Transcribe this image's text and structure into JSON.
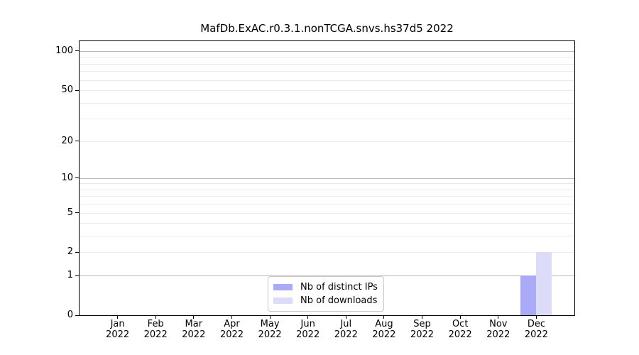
{
  "chart_data": {
    "type": "bar",
    "title": "MafDb.ExAC.r0.3.1.nonTCGA.snvs.hs37d5 2022",
    "categories": [
      {
        "month": "Jan",
        "year": "2022"
      },
      {
        "month": "Feb",
        "year": "2022"
      },
      {
        "month": "Mar",
        "year": "2022"
      },
      {
        "month": "Apr",
        "year": "2022"
      },
      {
        "month": "May",
        "year": "2022"
      },
      {
        "month": "Jun",
        "year": "2022"
      },
      {
        "month": "Jul",
        "year": "2022"
      },
      {
        "month": "Aug",
        "year": "2022"
      },
      {
        "month": "Sep",
        "year": "2022"
      },
      {
        "month": "Oct",
        "year": "2022"
      },
      {
        "month": "Nov",
        "year": "2022"
      },
      {
        "month": "Dec",
        "year": "2022"
      }
    ],
    "series": [
      {
        "name": "Nb of distinct IPs",
        "color": "#aaaaf6",
        "values": [
          0,
          0,
          0,
          0,
          0,
          0,
          0,
          0,
          0,
          0,
          0,
          1
        ]
      },
      {
        "name": "Nb of downloads",
        "color": "#dcdcf9",
        "values": [
          0,
          0,
          0,
          0,
          0,
          0,
          0,
          0,
          0,
          0,
          0,
          2
        ]
      }
    ],
    "yscale": "log1p",
    "ylim": [
      0,
      119
    ],
    "yticks": [
      0,
      1,
      2,
      5,
      10,
      20,
      50,
      100
    ],
    "major_gridlines": [
      1,
      10,
      100
    ],
    "minor_gridlines": [
      2,
      3,
      4,
      5,
      6,
      7,
      8,
      9,
      20,
      30,
      40,
      50,
      60,
      70,
      80,
      90
    ],
    "grid": "horizontal",
    "legend_position": "inside-bottom-center",
    "xlabel": "",
    "ylabel": ""
  }
}
